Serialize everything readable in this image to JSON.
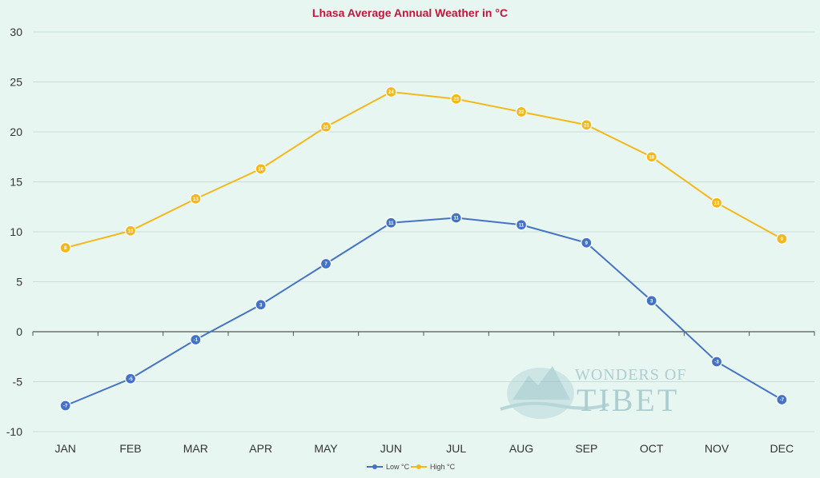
{
  "chart_data": {
    "type": "line",
    "title": "Lhasa Average Annual Weather in °C",
    "categories": [
      "JAN",
      "FEB",
      "MAR",
      "APR",
      "MAY",
      "JUN",
      "JUL",
      "AUG",
      "SEP",
      "OCT",
      "NOV",
      "DEC"
    ],
    "ylim": [
      -10,
      30
    ],
    "yticks": [
      30,
      25,
      20,
      15,
      10,
      5,
      0,
      -5,
      -10
    ],
    "grid": true,
    "legend_position": "bottom",
    "series": [
      {
        "name": "Low °C",
        "color": "#4472c4",
        "values": [
          -7.4,
          -4.7,
          -0.8,
          2.7,
          6.8,
          10.9,
          11.4,
          10.7,
          8.9,
          3.1,
          -3.0,
          -6.8
        ],
        "labels": [
          "-7",
          "-5",
          "-1",
          "3",
          "7",
          "11",
          "11",
          "11",
          "9",
          "3",
          "-3",
          "-7"
        ]
      },
      {
        "name": "High °C",
        "color": "#f4b81a",
        "values": [
          8.4,
          10.1,
          13.3,
          16.3,
          20.5,
          24.0,
          23.3,
          22.0,
          20.7,
          17.5,
          12.9,
          9.3
        ],
        "labels": [
          "8",
          "10",
          "13",
          "16",
          "21",
          "24",
          "23",
          "22",
          "21",
          "18",
          "13",
          "9"
        ]
      }
    ],
    "title_color": "#c0163a",
    "grid_color": "#c9ddd7",
    "axis_color": "#555555"
  },
  "watermark": {
    "line1": "WONDERS OF",
    "line2": "TIBET",
    "color": "#7eaeb6"
  }
}
